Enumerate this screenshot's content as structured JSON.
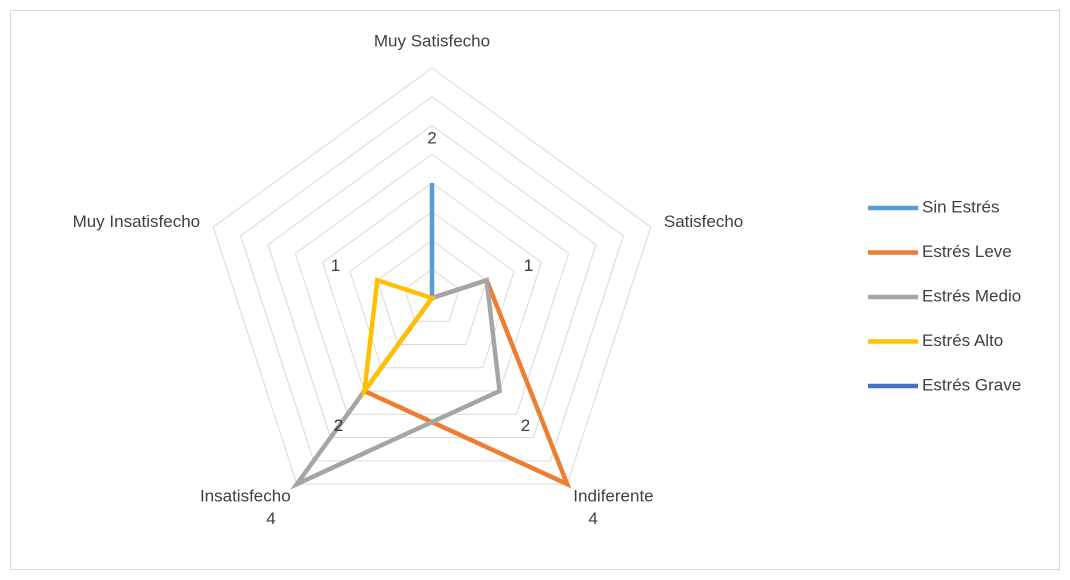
{
  "chart_data": {
    "type": "radar",
    "categories": [
      "Muy Satisfecho",
      "Satisfecho",
      "Indiferente",
      "Insatisfecho",
      "Muy Insatisfecho"
    ],
    "series": [
      {
        "name": "Sin Estrés",
        "color": "#5b9bd5",
        "values": [
          2,
          0,
          0,
          0,
          0
        ]
      },
      {
        "name": "Estrés Leve",
        "color": "#ed7d31",
        "values": [
          0,
          1,
          4,
          2,
          0
        ]
      },
      {
        "name": "Estrés Medio",
        "color": "#a5a5a5",
        "values": [
          0,
          1,
          2,
          4,
          0
        ]
      },
      {
        "name": "Estrés Alto",
        "color": "#ffc000",
        "values": [
          0,
          0,
          0,
          2,
          1
        ]
      },
      {
        "name": "Estrés Grave",
        "color": "#4472c4",
        "values": [
          0,
          0,
          0,
          0,
          0
        ]
      }
    ],
    "ylim": [
      0,
      4
    ],
    "yticks": [
      0,
      0.5,
      1,
      1.5,
      2,
      2.5,
      3,
      3.5,
      4
    ],
    "grid": true,
    "legend": "right"
  }
}
